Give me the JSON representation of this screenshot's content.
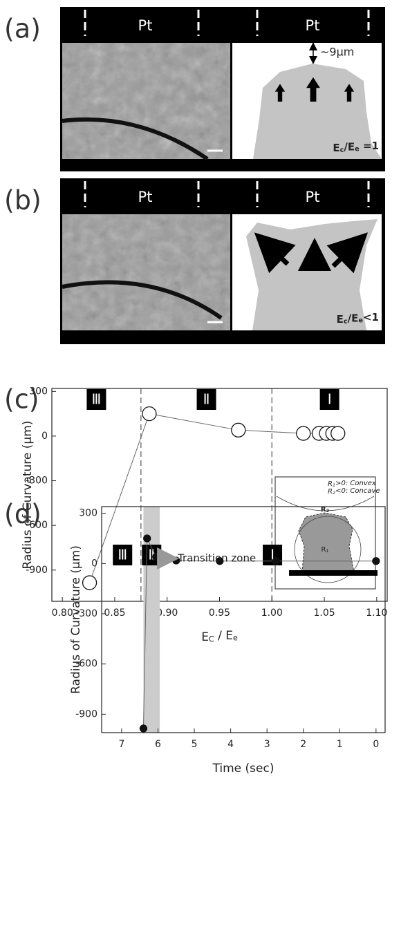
{
  "panels": [
    {
      "label": "(a)",
      "pt_labels": [
        "Pt",
        "Pt"
      ],
      "distance": "~9μm",
      "ratio": [
        "E",
        "c",
        "/E",
        "e",
        " =1"
      ]
    },
    {
      "label": "(b)",
      "pt_labels": [
        "Pt",
        "Pt"
      ],
      "ratio": [
        "E",
        "c",
        "/E",
        "e",
        "<1"
      ]
    }
  ],
  "chart_data": [
    {
      "type": "line",
      "title": "(c)",
      "x": [
        0.826,
        0.883,
        0.968,
        1.03,
        1.045,
        1.052,
        1.058,
        1.063
      ],
      "values": [
        -985,
        150,
        40,
        18,
        18,
        18,
        18,
        18
      ],
      "marker": "open-circle",
      "line_color": "#666",
      "xlabel": [
        "E",
        "C",
        " / E",
        "e"
      ],
      "ylabel": "Radius of Curvature (μm)",
      "xlim": [
        0.79,
        1.11
      ],
      "ylim": [
        -1110,
        320
      ],
      "xticks": [
        {
          "value": 0.8,
          "label": "0.80"
        },
        {
          "value": 0.85,
          "label": "0.85"
        },
        {
          "value": 0.9,
          "label": "0.90"
        },
        {
          "value": 0.95,
          "label": "0.95"
        },
        {
          "value": 1.0,
          "label": "1.00"
        },
        {
          "value": 1.05,
          "label": "1.05"
        },
        {
          "value": 1.1,
          "label": "1.10"
        }
      ],
      "yticks": [
        300,
        0,
        -300,
        -600,
        -900
      ],
      "vlines": [
        0.875,
        1.0
      ],
      "region_labels": [
        "Ⅲ",
        "Ⅱ",
        "Ⅰ"
      ],
      "inset": {
        "lines": [
          [
            "R",
            "1",
            ">0: Convex"
          ],
          [
            "R",
            "2",
            "<0: Concave"
          ]
        ],
        "r2": [
          "R",
          "2"
        ],
        "r1": [
          "R",
          "1"
        ]
      }
    },
    {
      "type": "line",
      "title": "(d)",
      "x": [
        6.4,
        6.3,
        6.05,
        5.5,
        4.3,
        2.75,
        0
      ],
      "values": [
        -985,
        150,
        40,
        18,
        15,
        15,
        15
      ],
      "marker": "filled-circle",
      "line_color": "#666",
      "xlabel": "Time (sec)",
      "ylabel": "Radius of Curvature (μm)",
      "xlim": [
        7.55,
        -0.25
      ],
      "ylim": [
        -1010,
        340
      ],
      "xticks": [
        7,
        6,
        5,
        4,
        3,
        2,
        1,
        0
      ],
      "yticks": [
        300,
        0,
        -300,
        -600,
        -900
      ],
      "shaded_span": [
        6.4,
        5.95
      ],
      "region_labels": [
        "Ⅲ",
        "Ⅱ",
        "Ⅰ"
      ],
      "annotation": "Transition zone"
    }
  ]
}
